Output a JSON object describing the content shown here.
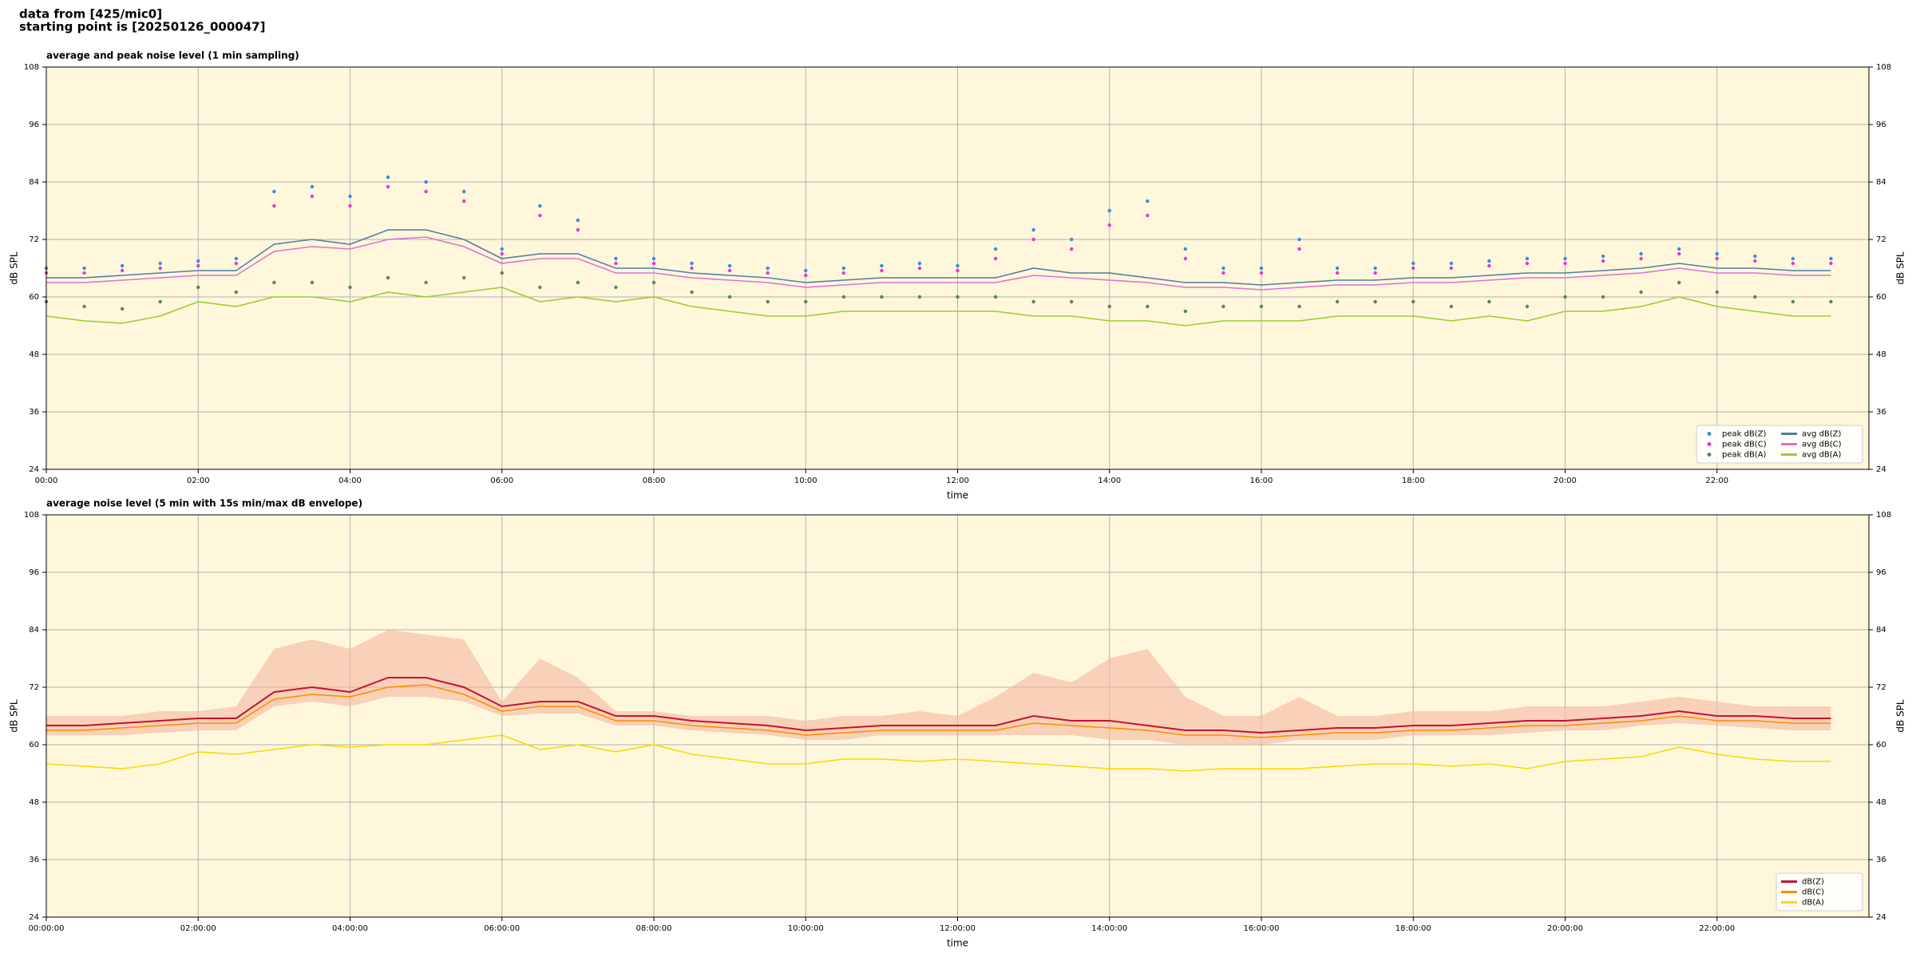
{
  "header": {
    "lines": [
      "data from [425/mic0]",
      "starting point is [20250126_000047]"
    ]
  },
  "chart_data": [
    {
      "type": "line",
      "title": "average and peak noise level (1 min sampling)",
      "xlabel": "time",
      "ylabel": "dB SPL",
      "x": [
        0,
        0.5,
        1,
        1.5,
        2,
        2.5,
        3,
        3.5,
        4,
        4.5,
        5,
        5.5,
        6,
        6.5,
        7,
        7.5,
        8,
        8.5,
        9,
        9.5,
        10,
        10.5,
        11,
        11.5,
        12,
        12.5,
        13,
        13.5,
        14,
        14.5,
        15,
        15.5,
        16,
        16.5,
        17,
        17.5,
        18,
        18.5,
        19,
        19.5,
        20,
        20.5,
        21,
        21.5,
        22,
        22.5,
        23,
        23.5
      ],
      "xlim": [
        0,
        24
      ],
      "xticks": [
        {
          "value": 0,
          "label": "00:00"
        },
        {
          "value": 2,
          "label": "02:00"
        },
        {
          "value": 4,
          "label": "04:00"
        },
        {
          "value": 6,
          "label": "06:00"
        },
        {
          "value": 8,
          "label": "08:00"
        },
        {
          "value": 10,
          "label": "10:00"
        },
        {
          "value": 12,
          "label": "12:00"
        },
        {
          "value": 14,
          "label": "14:00"
        },
        {
          "value": 16,
          "label": "16:00"
        },
        {
          "value": 18,
          "label": "18:00"
        },
        {
          "value": 20,
          "label": "20:00"
        },
        {
          "value": 22,
          "label": "22:00"
        }
      ],
      "ylim": [
        24,
        108
      ],
      "yticks": [
        24,
        36,
        48,
        60,
        72,
        84,
        96,
        108
      ],
      "grid": true,
      "legend": "lower right",
      "legend_columns": 2,
      "series": [
        {
          "name": "peak dB(Z)",
          "style": "scatter",
          "color": "#2f8fd8",
          "values": [
            66,
            66,
            66.5,
            67,
            67.5,
            68,
            82,
            83,
            81,
            85,
            84,
            82,
            70,
            79,
            76,
            68,
            68,
            67,
            66.5,
            66,
            65.5,
            66,
            66.5,
            67,
            66.5,
            70,
            74,
            72,
            78,
            80,
            70,
            66,
            66,
            72,
            66,
            66,
            67,
            67,
            67.5,
            68,
            68,
            68.5,
            69,
            70,
            69,
            68.5,
            68,
            68
          ]
        },
        {
          "name": "peak dB(C)",
          "style": "scatter",
          "color": "#f030d0",
          "values": [
            65,
            65,
            65.5,
            66,
            66.5,
            67,
            79,
            81,
            79,
            83,
            82,
            80,
            69,
            77,
            74,
            67,
            67,
            66,
            65.5,
            65,
            64.5,
            65,
            65.5,
            66,
            65.5,
            68,
            72,
            70,
            75,
            77,
            68,
            65,
            65,
            70,
            65,
            65,
            66,
            66,
            66.5,
            67,
            67,
            67.5,
            68,
            69,
            68,
            67.5,
            67,
            67
          ]
        },
        {
          "name": "peak dB(A)",
          "style": "scatter",
          "color": "#4f8a50",
          "values": [
            59,
            58,
            57.5,
            59,
            62,
            61,
            63,
            63,
            62,
            64,
            63,
            64,
            65,
            62,
            63,
            62,
            63,
            61,
            60,
            59,
            59,
            60,
            60,
            60,
            60,
            60,
            59,
            59,
            58,
            58,
            57,
            58,
            58,
            58,
            59,
            59,
            59,
            58,
            59,
            58,
            60,
            60,
            61,
            63,
            61,
            60,
            59,
            59
          ]
        },
        {
          "name": "avg dB(Z)",
          "style": "line",
          "color": "#4f7fa0",
          "values": [
            64,
            64,
            64.5,
            65,
            65.5,
            65.5,
            71,
            72,
            71,
            74,
            74,
            72,
            68,
            69,
            69,
            66,
            66,
            65,
            64.5,
            64,
            63,
            63.5,
            64,
            64,
            64,
            64,
            66,
            65,
            65,
            64,
            63,
            63,
            62.5,
            63,
            63.5,
            63.5,
            64,
            64,
            64.5,
            65,
            65,
            65.5,
            66,
            67,
            66,
            66,
            65.5,
            65.5
          ]
        },
        {
          "name": "avg dB(C)",
          "style": "line",
          "color": "#e070d0",
          "values": [
            63,
            63,
            63.5,
            64,
            64.5,
            64.5,
            69.5,
            70.5,
            70,
            72,
            72.5,
            70.5,
            67,
            68,
            68,
            65,
            65,
            64,
            63.5,
            63,
            62,
            62.5,
            63,
            63,
            63,
            63,
            64.5,
            64,
            63.5,
            63,
            62,
            62,
            61.5,
            62,
            62.5,
            62.5,
            63,
            63,
            63.5,
            64,
            64,
            64.5,
            65,
            66,
            65,
            65,
            64.5,
            64.5
          ]
        },
        {
          "name": "avg dB(A)",
          "style": "line",
          "color": "#9acd32",
          "values": [
            56,
            55,
            54.5,
            56,
            59,
            58,
            60,
            60,
            59,
            61,
            60,
            61,
            62,
            59,
            60,
            59,
            60,
            58,
            57,
            56,
            56,
            57,
            57,
            57,
            57,
            57,
            56,
            56,
            55,
            55,
            54,
            55,
            55,
            55,
            56,
            56,
            56,
            55,
            56,
            55,
            57,
            57,
            58,
            60,
            58,
            57,
            56,
            56
          ]
        }
      ]
    },
    {
      "type": "line",
      "title": "average noise level (5 min with 15s min/max dB envelope)",
      "xlabel": "time",
      "ylabel": "dB SPL",
      "x": [
        0,
        0.5,
        1,
        1.5,
        2,
        2.5,
        3,
        3.5,
        4,
        4.5,
        5,
        5.5,
        6,
        6.5,
        7,
        7.5,
        8,
        8.5,
        9,
        9.5,
        10,
        10.5,
        11,
        11.5,
        12,
        12.5,
        13,
        13.5,
        14,
        14.5,
        15,
        15.5,
        16,
        16.5,
        17,
        17.5,
        18,
        18.5,
        19,
        19.5,
        20,
        20.5,
        21,
        21.5,
        22,
        22.5,
        23,
        23.5
      ],
      "xlim": [
        0,
        24
      ],
      "xticks": [
        {
          "value": 0,
          "label": "00:00:00"
        },
        {
          "value": 2,
          "label": "02:00:00"
        },
        {
          "value": 4,
          "label": "04:00:00"
        },
        {
          "value": 6,
          "label": "06:00:00"
        },
        {
          "value": 8,
          "label": "08:00:00"
        },
        {
          "value": 10,
          "label": "10:00:00"
        },
        {
          "value": 12,
          "label": "12:00:00"
        },
        {
          "value": 14,
          "label": "14:00:00"
        },
        {
          "value": 16,
          "label": "16:00:00"
        },
        {
          "value": 18,
          "label": "18:00:00"
        },
        {
          "value": 20,
          "label": "20:00:00"
        },
        {
          "value": 22,
          "label": "22:00:00"
        }
      ],
      "ylim": [
        24,
        108
      ],
      "yticks": [
        24,
        36,
        48,
        60,
        72,
        84,
        96,
        108
      ],
      "grid": true,
      "legend": "lower right",
      "legend_columns": 1,
      "envelope": {
        "color": "#f4b8a0",
        "upper": [
          66,
          66,
          66,
          67,
          67,
          68,
          80,
          82,
          80,
          84,
          83,
          82,
          69,
          78,
          74,
          67,
          67,
          66,
          66,
          66,
          65,
          66,
          66,
          67,
          66,
          70,
          75,
          73,
          78,
          80,
          70,
          66,
          66,
          70,
          66,
          66,
          67,
          67,
          67,
          68,
          68,
          68,
          69,
          70,
          69,
          68,
          68,
          68
        ],
        "lower": [
          62,
          62,
          62,
          62.5,
          63,
          63,
          68,
          69,
          68,
          70,
          70,
          69,
          66,
          66.5,
          66.5,
          64,
          64,
          63,
          62.5,
          62,
          61,
          61,
          62,
          62,
          62,
          62,
          62,
          62,
          61,
          61,
          60,
          60,
          60,
          61,
          61,
          61,
          62,
          62,
          62,
          62.5,
          63,
          63,
          64,
          64.5,
          64,
          63.5,
          63,
          63
        ]
      },
      "series": [
        {
          "name": "dB(Z)",
          "style": "line",
          "color": "#c8102e",
          "values": [
            64,
            64,
            64.5,
            65,
            65.5,
            65.5,
            71,
            72,
            71,
            74,
            74,
            72,
            68,
            69,
            69,
            66,
            66,
            65,
            64.5,
            64,
            63,
            63.5,
            64,
            64,
            64,
            64,
            66,
            65,
            65,
            64,
            63,
            63,
            62.5,
            63,
            63.5,
            63.5,
            64,
            64,
            64.5,
            65,
            65,
            65.5,
            66,
            67,
            66,
            66,
            65.5,
            65.5
          ]
        },
        {
          "name": "dB(C)",
          "style": "line",
          "color": "#ff8c00",
          "values": [
            63,
            63,
            63.5,
            64,
            64.5,
            64.5,
            69.5,
            70.5,
            70,
            72,
            72.5,
            70.5,
            67,
            68,
            68,
            65,
            65,
            64,
            63.5,
            63,
            62,
            62.5,
            63,
            63,
            63,
            63,
            64.5,
            64,
            63.5,
            63,
            62,
            62,
            61.5,
            62,
            62.5,
            62.5,
            63,
            63,
            63.5,
            64,
            64,
            64.5,
            65,
            66,
            65,
            65,
            64.5,
            64.5
          ]
        },
        {
          "name": "dB(A)",
          "style": "line",
          "color": "#ffd700",
          "values": [
            56,
            55.5,
            55,
            56,
            58.5,
            58,
            59,
            60,
            59.5,
            60,
            60,
            61,
            62,
            59,
            60,
            58.5,
            60,
            58,
            57,
            56,
            56,
            57,
            57,
            56.5,
            57,
            56.5,
            56,
            55.5,
            55,
            55,
            54.5,
            55,
            55,
            55,
            55.5,
            56,
            56,
            55.5,
            56,
            55,
            56.5,
            57,
            57.5,
            59.5,
            58,
            57,
            56.5,
            56.5
          ]
        }
      ]
    }
  ]
}
